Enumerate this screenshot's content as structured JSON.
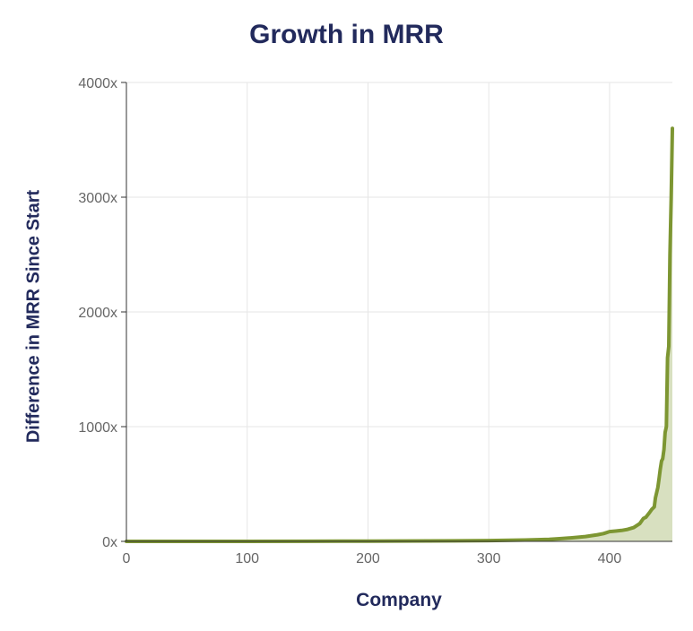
{
  "chart_data": {
    "type": "area",
    "title": "Growth in MRR",
    "xlabel": "Company",
    "ylabel": "Difference in MRR Since Start",
    "xlim": [
      0,
      452
    ],
    "ylim": [
      0,
      4000
    ],
    "x_ticks": [
      0,
      100,
      200,
      300,
      400
    ],
    "x_tick_labels": [
      "0",
      "100",
      "200",
      "300",
      "400"
    ],
    "y_ticks": [
      0,
      1000,
      2000,
      3000,
      4000
    ],
    "y_tick_labels": [
      "0x",
      "1000x",
      "2000x",
      "3000x",
      "4000x"
    ],
    "grid": true,
    "legend": "none",
    "colors": {
      "line": "#7d9632",
      "fill": "#d8e0c0",
      "title": "#222a5c",
      "grid": "#e6e6e6"
    },
    "series": [
      {
        "x": [
          0,
          50,
          100,
          150,
          200,
          250,
          300,
          330,
          350,
          360,
          370,
          380,
          390,
          395,
          400,
          405,
          410,
          415,
          420,
          425,
          428,
          430,
          433,
          435,
          437,
          438,
          440,
          441,
          442,
          443,
          444,
          445,
          446,
          447,
          448,
          449,
          450,
          451,
          452
        ],
        "y": [
          0,
          0,
          0,
          1,
          2,
          4,
          7,
          12,
          18,
          24,
          32,
          42,
          58,
          68,
          85,
          90,
          95,
          105,
          120,
          155,
          200,
          210,
          250,
          280,
          300,
          380,
          470,
          550,
          630,
          700,
          720,
          800,
          950,
          1000,
          1600,
          1700,
          2500,
          3000,
          3600
        ]
      }
    ]
  }
}
